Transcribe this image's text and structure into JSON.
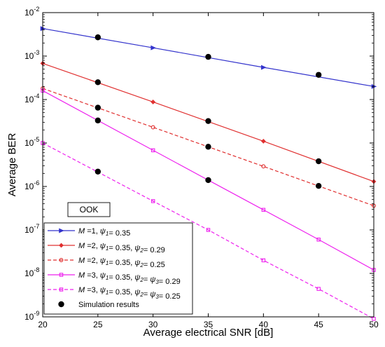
{
  "chart_data": {
    "type": "line",
    "title": "",
    "xlabel": "Average electrical SNR [dB]",
    "ylabel": "Average BER",
    "xlim": [
      20,
      50
    ],
    "ylim": [
      1e-09,
      0.01
    ],
    "yscale": "log",
    "grid": false,
    "legend_position": "bottom-left",
    "x_ticks": [
      {
        "value": 20,
        "label": "20"
      },
      {
        "value": 25,
        "label": "25"
      },
      {
        "value": 30,
        "label": "30"
      },
      {
        "value": 35,
        "label": "35"
      },
      {
        "value": 40,
        "label": "40"
      },
      {
        "value": 45,
        "label": "45"
      },
      {
        "value": 50,
        "label": "50"
      }
    ],
    "y_ticks": [
      {
        "value": 1e-09,
        "base": "10",
        "exp": "-9"
      },
      {
        "value": 1e-08,
        "base": "10",
        "exp": "-8"
      },
      {
        "value": 1e-07,
        "base": "10",
        "exp": "-7"
      },
      {
        "value": 1e-06,
        "base": "10",
        "exp": "-6"
      },
      {
        "value": 1e-05,
        "base": "10",
        "exp": "-5"
      },
      {
        "value": 0.0001,
        "base": "10",
        "exp": "-4"
      },
      {
        "value": 0.001,
        "base": "10",
        "exp": "-3"
      },
      {
        "value": 0.01,
        "base": "10",
        "exp": "-2"
      }
    ],
    "annotation": "OOK",
    "series": [
      {
        "legend": [
          {
            "t": "M",
            "i": true
          },
          {
            "t": " =1, "
          },
          {
            "t": "ψ",
            "i": true
          },
          {
            "t": "1",
            "sub": true,
            "i": true
          },
          {
            "t": "= 0.35"
          }
        ],
        "color": "#3333cc",
        "dash": "solid",
        "marker": "triangle-right",
        "x": [
          20,
          30,
          40,
          50
        ],
        "y": [
          0.0043,
          0.00155,
          0.00055,
          0.0002
        ]
      },
      {
        "legend": [
          {
            "t": "M",
            "i": true
          },
          {
            "t": " =2, "
          },
          {
            "t": "ψ",
            "i": true
          },
          {
            "t": "1",
            "sub": true,
            "i": true
          },
          {
            "t": "= 0.35, "
          },
          {
            "t": "ψ",
            "i": true
          },
          {
            "t": "2",
            "sub": true,
            "i": true
          },
          {
            "t": "= 0.29"
          }
        ],
        "color": "#e03030",
        "dash": "solid",
        "marker": "diamond",
        "x": [
          20,
          30,
          40,
          50
        ],
        "y": [
          0.00068,
          8.8e-05,
          1.1e-05,
          1.3e-06
        ]
      },
      {
        "legend": [
          {
            "t": "M",
            "i": true
          },
          {
            "t": " =2, "
          },
          {
            "t": "ψ",
            "i": true
          },
          {
            "t": "1",
            "sub": true,
            "i": true
          },
          {
            "t": "= 0.35, "
          },
          {
            "t": "ψ",
            "i": true
          },
          {
            "t": "2",
            "sub": true,
            "i": true
          },
          {
            "t": "= 0.25"
          }
        ],
        "color": "#e03030",
        "dash": "dashed",
        "marker": "circle",
        "x": [
          20,
          30,
          40,
          50
        ],
        "y": [
          0.00018,
          2.3e-05,
          2.9e-06,
          3.6e-07
        ]
      },
      {
        "legend": [
          {
            "t": "M",
            "i": true
          },
          {
            "t": " =3, "
          },
          {
            "t": "ψ",
            "i": true
          },
          {
            "t": "1",
            "sub": true,
            "i": true
          },
          {
            "t": "= 0.35, "
          },
          {
            "t": "ψ",
            "i": true
          },
          {
            "t": "2",
            "sub": true,
            "i": true
          },
          {
            "t": "= "
          },
          {
            "t": "ψ",
            "i": true
          },
          {
            "t": "3",
            "sub": true,
            "i": true
          },
          {
            "t": "= 0.29"
          }
        ],
        "color": "#ee22ee",
        "dash": "solid",
        "marker": "square",
        "x": [
          20,
          30,
          35,
          40,
          45,
          50
        ],
        "y": [
          0.00016,
          6.8e-06,
          1.4e-06,
          2.9e-07,
          6e-08,
          1.2e-08
        ]
      },
      {
        "legend": [
          {
            "t": "M",
            "i": true
          },
          {
            "t": " =3, "
          },
          {
            "t": "ψ",
            "i": true
          },
          {
            "t": "1",
            "sub": true,
            "i": true
          },
          {
            "t": "= 0.35, "
          },
          {
            "t": "ψ",
            "i": true
          },
          {
            "t": "2",
            "sub": true,
            "i": true
          },
          {
            "t": "= "
          },
          {
            "t": "ψ",
            "i": true
          },
          {
            "t": "3",
            "sub": true,
            "i": true
          },
          {
            "t": "= 0.25"
          }
        ],
        "color": "#ee22ee",
        "dash": "dashed",
        "marker": "square",
        "x": [
          20,
          30,
          35,
          40,
          45,
          50
        ],
        "y": [
          1e-05,
          4.6e-07,
          1e-07,
          2e-08,
          4.4e-09,
          9e-10
        ]
      }
    ],
    "simulation": {
      "legend": "Simulation results",
      "color": "#000000",
      "points": [
        [
          25,
          0.0027
        ],
        [
          35,
          0.00096
        ],
        [
          45,
          0.00037
        ],
        [
          25,
          0.00025
        ],
        [
          35,
          3.2e-05
        ],
        [
          45,
          3.8e-06
        ],
        [
          25,
          6.5e-05
        ],
        [
          35,
          8.2e-06
        ],
        [
          45,
          1.03e-06
        ],
        [
          25,
          3.3e-05
        ],
        [
          35,
          1.4e-06
        ],
        [
          25,
          2.2e-06
        ]
      ]
    }
  }
}
